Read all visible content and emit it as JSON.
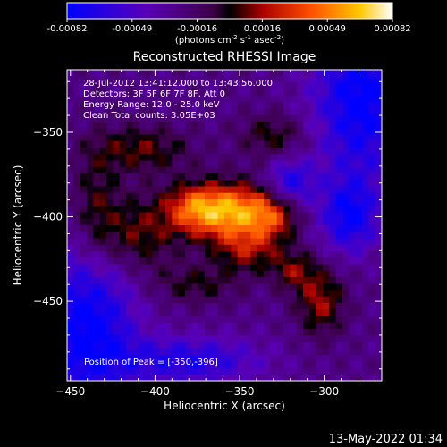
{
  "colorbar": {
    "ticks": [
      "-0.00082",
      "-0.00049",
      "-0.00016",
      "0.00016",
      "0.00049",
      "0.00082"
    ],
    "unit_main": "(photons cm",
    "unit_exp1": "-2",
    "unit_mid": " s",
    "unit_exp2": "-1",
    "unit_mid2": " asec",
    "unit_exp3": "-2",
    "unit_end": ")"
  },
  "plot": {
    "title": "Reconstructed RHESSI Image",
    "annotation_lines": [
      "28-Jul-2012 13:41:12.000 to 13:43:56.000",
      "Detectors: 3F 5F 6F 7F 8F, Att 0",
      "Energy Range: 12.0 - 25.0 keV",
      "Clean     Total counts: 3.05E+03"
    ],
    "peak_label": "Position of Peak = [-350,-396]",
    "footer_date": "13-May-2022 01:34"
  },
  "chart_data": {
    "type": "heatmap",
    "title": "Reconstructed RHESSI Image",
    "xlabel": "Heliocentric X (arcsec)",
    "ylabel": "Heliocentric Y (arcsec)",
    "xlim": [
      -452,
      -266
    ],
    "ylim": [
      -497,
      -313
    ],
    "x_ticks": [
      -450,
      -400,
      -350,
      -300
    ],
    "x_tick_labels": [
      "−450",
      "−400",
      "−350",
      "−300"
    ],
    "y_ticks": [
      -350,
      -400,
      -450
    ],
    "y_tick_labels": [
      "−350",
      "−400",
      "−450"
    ],
    "colorbar_range": [
      -0.00082,
      0.00082
    ],
    "colormap": "blue-purple-red-orange-yellow-white",
    "peak_position": [
      -350,
      -396
    ],
    "sources": [
      {
        "x": -354,
        "y": -397,
        "sx": 18,
        "sy": 12,
        "amp": 1.0
      },
      {
        "x": -378,
        "y": -395,
        "sx": 12,
        "sy": 10,
        "amp": 0.55
      },
      {
        "x": -330,
        "y": -400,
        "sx": 10,
        "sy": 9,
        "amp": 0.45
      },
      {
        "x": -345,
        "y": -420,
        "sx": 14,
        "sy": 9,
        "amp": 0.45
      },
      {
        "x": -410,
        "y": -410,
        "sx": 16,
        "sy": 16,
        "amp": 0.45
      },
      {
        "x": -408,
        "y": -360,
        "sx": 20,
        "sy": 10,
        "amp": 0.4
      },
      {
        "x": -330,
        "y": -352,
        "sx": 14,
        "sy": 9,
        "amp": 0.35
      },
      {
        "x": -302,
        "y": -450,
        "sx": 10,
        "sy": 14,
        "amp": 0.5
      },
      {
        "x": -318,
        "y": -432,
        "sx": 9,
        "sy": 8,
        "amp": 0.4
      },
      {
        "x": -435,
        "y": -395,
        "sx": 10,
        "sy": 25,
        "amp": 0.35
      },
      {
        "x": -375,
        "y": -440,
        "sx": 18,
        "sy": 8,
        "amp": 0.3
      }
    ],
    "negative_regions": [
      {
        "x": -440,
        "y": -465,
        "sx": 20,
        "sy": 35,
        "amp": -0.7
      },
      {
        "x": -320,
        "y": -380,
        "sx": 10,
        "sy": 10,
        "amp": -0.5
      },
      {
        "x": -278,
        "y": -330,
        "sx": 20,
        "sy": 35,
        "amp": -0.7
      },
      {
        "x": -285,
        "y": -400,
        "sx": 12,
        "sy": 15,
        "amp": -0.6
      },
      {
        "x": -380,
        "y": -485,
        "sx": 30,
        "sy": 10,
        "amp": -0.5
      }
    ]
  }
}
